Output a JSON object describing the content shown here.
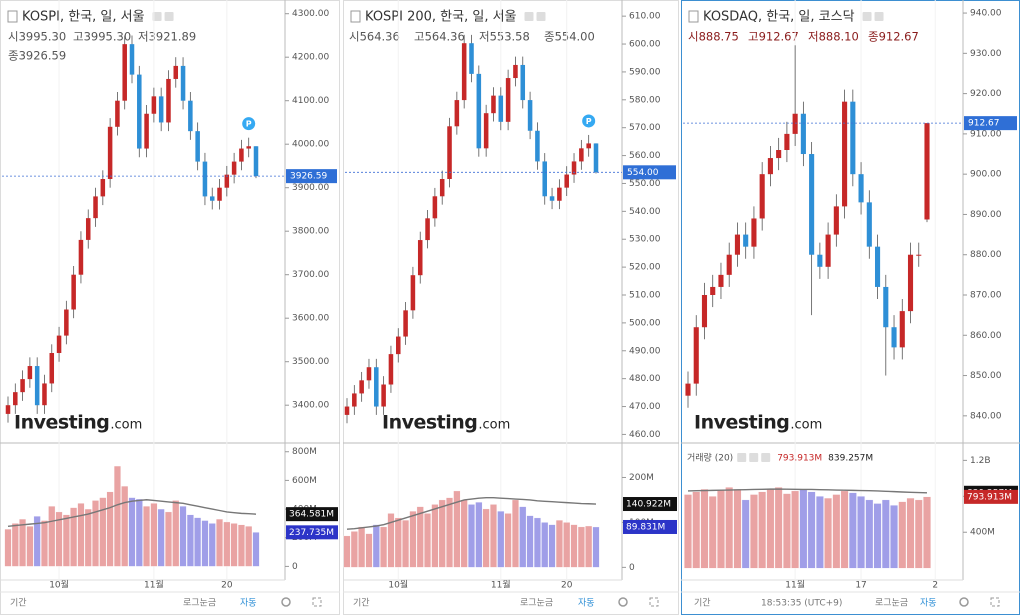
{
  "chart_data": [
    {
      "type": "candlestick",
      "title": "KOSPI, 한국, 일, 서울",
      "ohlc_labels": [
        "시3995.30",
        "고3995.30",
        "저3921.89",
        "종3926.59"
      ],
      "badge": "P",
      "open": [
        3380,
        3400,
        3430,
        3460,
        3490,
        3400,
        3450,
        3520,
        3560,
        3620,
        3700,
        3780,
        3830,
        3880,
        3920,
        4040,
        4100,
        4230,
        4160,
        3990,
        4070,
        4110,
        4050,
        4150,
        4180,
        4100,
        4030,
        3960,
        3880,
        3870,
        3900,
        3930,
        3960,
        3990,
        3995.3
      ],
      "high": [
        3420,
        3450,
        3480,
        3510,
        3510,
        3470,
        3540,
        3580,
        3640,
        3720,
        3800,
        3850,
        3900,
        3940,
        4060,
        4120,
        4250,
        4250,
        4180,
        4090,
        4130,
        4130,
        4170,
        4200,
        4200,
        4120,
        4050,
        3980,
        3900,
        3920,
        3950,
        3980,
        4010,
        4015,
        3995.3
      ],
      "low": [
        3360,
        3380,
        3410,
        3440,
        3380,
        3380,
        3430,
        3500,
        3540,
        3600,
        3680,
        3760,
        3810,
        3860,
        3900,
        4020,
        4080,
        4140,
        3970,
        3970,
        4050,
        4030,
        4030,
        4130,
        4080,
        4010,
        3940,
        3860,
        3850,
        3850,
        3880,
        3910,
        3940,
        3970,
        3921.89
      ],
      "close": [
        3400,
        3430,
        3460,
        3490,
        3400,
        3450,
        3520,
        3560,
        3620,
        3700,
        3780,
        3830,
        3880,
        3920,
        4040,
        4100,
        4230,
        4160,
        3990,
        4070,
        4110,
        4050,
        4150,
        4180,
        4100,
        4030,
        3960,
        3880,
        3870,
        3900,
        3930,
        3960,
        3990,
        3995.3,
        3926.59
      ],
      "up_color": "#c62828",
      "down_color": "#2e8fd6",
      "price_label": "3926.59",
      "ylim": [
        3320,
        4320
      ],
      "yticks": [
        {
          "value": 3400,
          "label": "3400.00"
        },
        {
          "value": 3500,
          "label": "3500.00"
        },
        {
          "value": 3600,
          "label": "3600.00"
        },
        {
          "value": 3700,
          "label": "3700.00"
        },
        {
          "value": 3800,
          "label": "3800.00"
        },
        {
          "value": 3900,
          "label": "3900.00"
        },
        {
          "value": 4000,
          "label": "4000.00"
        },
        {
          "value": 4100,
          "label": "4100.00"
        },
        {
          "value": 4200,
          "label": "4200.00"
        },
        {
          "value": 4300,
          "label": "4300.00"
        }
      ],
      "xticks": [
        {
          "value": 7,
          "label": "10월"
        },
        {
          "value": 20,
          "label": "11월"
        },
        {
          "value": 30,
          "label": "20"
        }
      ],
      "volume": {
        "values": [
          260,
          300,
          330,
          280,
          350,
          320,
          420,
          380,
          360,
          410,
          440,
          400,
          460,
          480,
          520,
          700,
          560,
          480,
          470,
          420,
          440,
          400,
          380,
          460,
          420,
          360,
          340,
          320,
          300,
          330,
          310,
          300,
          290,
          280,
          237.735
        ],
        "ma": [
          280,
          285,
          290,
          295,
          300,
          305,
          315,
          325,
          335,
          345,
          355,
          365,
          380,
          395,
          410,
          430,
          445,
          455,
          460,
          465,
          460,
          455,
          450,
          445,
          440,
          430,
          420,
          410,
          400,
          390,
          380,
          375,
          370,
          368,
          364.581
        ],
        "value_label": "237.735M",
        "ma_label": "364.581M",
        "up_color": "#e9a3a3",
        "down_color": "#a09ee8",
        "ma_color": "#777",
        "ylim": [
          -60,
          840
        ],
        "yticks": [
          0,
          {
            "value": 200,
            "label": "200M"
          },
          {
            "value": 400,
            "label": "400M"
          },
          {
            "value": 600,
            "label": "600M"
          },
          {
            "value": 800,
            "label": "800M"
          }
        ]
      },
      "watermark": [
        "Investing",
        ".com"
      ],
      "toolbar": [
        "기간",
        "로그눈금",
        "자동"
      ]
    },
    {
      "type": "candlestick",
      "title": "KOSPI 200, 한국, 일, 서울",
      "ohlc_labels": [
        "시564.36",
        "고564.36",
        "저553.58",
        "종554.00"
      ],
      "badge": "P",
      "open": [
        467,
        470,
        474.7,
        479.4,
        484.1,
        470,
        477.9,
        488.8,
        495.1,
        504.5,
        517.1,
        529.7,
        537.5,
        545.4,
        551.6,
        570.5,
        579.9,
        600.3,
        589.3,
        562.6,
        575.2,
        581.5,
        572.1,
        587.8,
        592.5,
        579.9,
        568.9,
        557.9,
        545.4,
        543.8,
        548.5,
        553.2,
        557.9,
        562.6,
        564.36
      ],
      "high": [
        473,
        477.7,
        482.4,
        487.1,
        487.1,
        480.9,
        491.8,
        498.1,
        507.5,
        520.1,
        532.7,
        540.5,
        548.4,
        554.6,
        573.5,
        582.9,
        603.3,
        603.3,
        592.3,
        578.2,
        584.5,
        584.5,
        590.8,
        595.5,
        595.5,
        582.9,
        571.9,
        560.9,
        548.4,
        551.5,
        556.2,
        560.9,
        565.6,
        567.4,
        564.36
      ],
      "low": [
        464,
        467,
        471.7,
        476.4,
        467,
        467,
        474.9,
        485.8,
        492.1,
        501.5,
        514.1,
        526.7,
        534.5,
        542.4,
        548.6,
        567.5,
        576.9,
        586.3,
        559.6,
        559.6,
        572.2,
        569.1,
        569.1,
        584.8,
        576.9,
        565.9,
        554.9,
        542.4,
        540.8,
        540.8,
        545.5,
        550.2,
        554.9,
        559.6,
        553.58
      ],
      "close": [
        470,
        474.7,
        479.4,
        484.1,
        470,
        477.9,
        488.8,
        495.1,
        504.5,
        517.1,
        529.7,
        537.5,
        545.4,
        551.6,
        570.5,
        579.9,
        600.3,
        589.3,
        562.6,
        575.2,
        581.5,
        572.1,
        587.8,
        592.5,
        579.9,
        568.9,
        557.9,
        545.4,
        543.8,
        548.5,
        553.2,
        557.9,
        562.6,
        564.36,
        554
      ],
      "up_color": "#c62828",
      "down_color": "#2e8fd6",
      "price_label": "554.00",
      "ylim": [
        458,
        614
      ],
      "yticks": [
        {
          "value": 460,
          "label": "460.00"
        },
        {
          "value": 470,
          "label": "470.00"
        },
        {
          "value": 480,
          "label": "480.00"
        },
        {
          "value": 490,
          "label": "490.00"
        },
        {
          "value": 500,
          "label": "500.00"
        },
        {
          "value": 510,
          "label": "510.00"
        },
        {
          "value": 520,
          "label": "520.00"
        },
        {
          "value": 530,
          "label": "530.00"
        },
        {
          "value": 540,
          "label": "540.00"
        },
        {
          "value": 550,
          "label": "550.00"
        },
        {
          "value": 560,
          "label": "560.00"
        },
        {
          "value": 570,
          "label": "570.00"
        },
        {
          "value": 580,
          "label": "580.00"
        },
        {
          "value": 590,
          "label": "590.00"
        },
        {
          "value": 600,
          "label": "600.00"
        },
        {
          "value": 610,
          "label": "610.00"
        }
      ],
      "xticks": [
        {
          "value": 7,
          "label": "10월"
        },
        {
          "value": 21,
          "label": "11월"
        },
        {
          "value": 30,
          "label": "20"
        }
      ],
      "volume": {
        "values": [
          70,
          80,
          90,
          75,
          95,
          90,
          120,
          110,
          105,
          125,
          135,
          120,
          140,
          150,
          155,
          170,
          150,
          140,
          145,
          130,
          140,
          125,
          120,
          150,
          135,
          115,
          110,
          100,
          95,
          105,
          100,
          95,
          90,
          92,
          89.831
        ],
        "ma": [
          85,
          86,
          88,
          90,
          92,
          95,
          100,
          105,
          110,
          115,
          120,
          125,
          130,
          135,
          140,
          145,
          150,
          152,
          154,
          155,
          155,
          154,
          153,
          152,
          151,
          150,
          148,
          147,
          146,
          145,
          144,
          143,
          142,
          141.5,
          140.922
        ],
        "value_label": "89.831M",
        "ma_label": "140.922M",
        "up_color": "#e9a3a3",
        "down_color": "#a09ee8",
        "ma_color": "#777",
        "ylim": [
          -17,
          270
        ],
        "yticks": [
          0,
          {
            "value": 100,
            "label": "100M"
          },
          {
            "value": 200,
            "label": "200M"
          }
        ]
      },
      "watermark": [
        "Investing",
        ".com"
      ],
      "toolbar": [
        "기간",
        "로그눈금",
        "자동"
      ]
    },
    {
      "type": "candlestick",
      "title": "KOSDAQ, 한국, 일, 코스닥",
      "ohlc_labels": [
        "시888.75",
        "고912.67",
        "저888.10",
        "종912.67"
      ],
      "open": [
        845,
        848,
        862,
        870,
        872,
        875,
        880,
        885,
        882,
        889,
        900,
        904,
        906,
        910,
        915,
        905,
        880,
        877,
        885,
        892,
        918,
        900,
        893,
        882,
        872,
        862,
        857,
        866,
        880,
        888.75
      ],
      "high": [
        851,
        865,
        873,
        875,
        878,
        883,
        888,
        888,
        892,
        903,
        907,
        909,
        913,
        932,
        918,
        908,
        883,
        888,
        895,
        921,
        921,
        903,
        896,
        885,
        875,
        865,
        869,
        883,
        883,
        912.67
      ],
      "low": [
        842,
        845,
        859,
        867,
        869,
        872,
        877,
        879,
        879,
        886,
        897,
        901,
        903,
        907,
        902,
        865,
        874,
        874,
        882,
        889,
        897,
        890,
        879,
        869,
        850,
        854,
        854,
        863,
        877,
        888.1
      ],
      "close": [
        848,
        862,
        870,
        872,
        875,
        880,
        885,
        882,
        889,
        900,
        904,
        906,
        910,
        915,
        905,
        880,
        877,
        885,
        892,
        918,
        900,
        893,
        882,
        872,
        862,
        857,
        866,
        880,
        880,
        912.67
      ],
      "up_color": "#c62828",
      "down_color": "#2e8fd6",
      "price_label": "912.67",
      "ylim": [
        834,
        942
      ],
      "yticks": [
        {
          "value": 840,
          "label": "840.00"
        },
        {
          "value": 850,
          "label": "850.00"
        },
        {
          "value": 860,
          "label": "860.00"
        },
        {
          "value": 870,
          "label": "870.00"
        },
        {
          "value": 880,
          "label": "880.00"
        },
        {
          "value": 890,
          "label": "890.00"
        },
        {
          "value": 900,
          "label": "900.00"
        },
        {
          "value": 910,
          "label": "910.00"
        },
        {
          "value": 920,
          "label": "920.00"
        },
        {
          "value": 930,
          "label": "930.00"
        },
        {
          "value": 940,
          "label": "940.00"
        }
      ],
      "xticks": [
        {
          "value": 13,
          "label": "11월"
        },
        {
          "value": 21,
          "label": "17"
        },
        {
          "value": 30,
          "label": "2"
        }
      ],
      "volume": {
        "legend": "거래량 (20)",
        "values": [
          820,
          850,
          880,
          800,
          870,
          900,
          880,
          760,
          820,
          850,
          880,
          900,
          830,
          860,
          880,
          850,
          800,
          780,
          820,
          860,
          840,
          800,
          760,
          720,
          760,
          700,
          740,
          780,
          760,
          793.913
        ],
        "ma": [
          860,
          862,
          864,
          866,
          868,
          870,
          872,
          874,
          876,
          878,
          880,
          880,
          879,
          878,
          877,
          876,
          874,
          872,
          870,
          868,
          866,
          864,
          862,
          860,
          856,
          852,
          848,
          845,
          842,
          839.257
        ],
        "value_label": "793.913M",
        "ma_label": "839.257M",
        "up_color": "#e9a3a3",
        "down_color": "#a09ee8",
        "ma_color": "#777",
        "ylim": [
          -76,
          1360
        ],
        "yticks": [
          {
            "value": 400,
            "label": "400M"
          },
          {
            "value": 800,
            "label": "800M"
          },
          {
            "value": 1200,
            "label": "1.2B"
          }
        ]
      },
      "watermark": [
        "Investing",
        ".com"
      ],
      "toolbar": [
        "기간",
        "로그눈금",
        "자동"
      ],
      "time": "18:53:35 (UTC+9)"
    }
  ]
}
